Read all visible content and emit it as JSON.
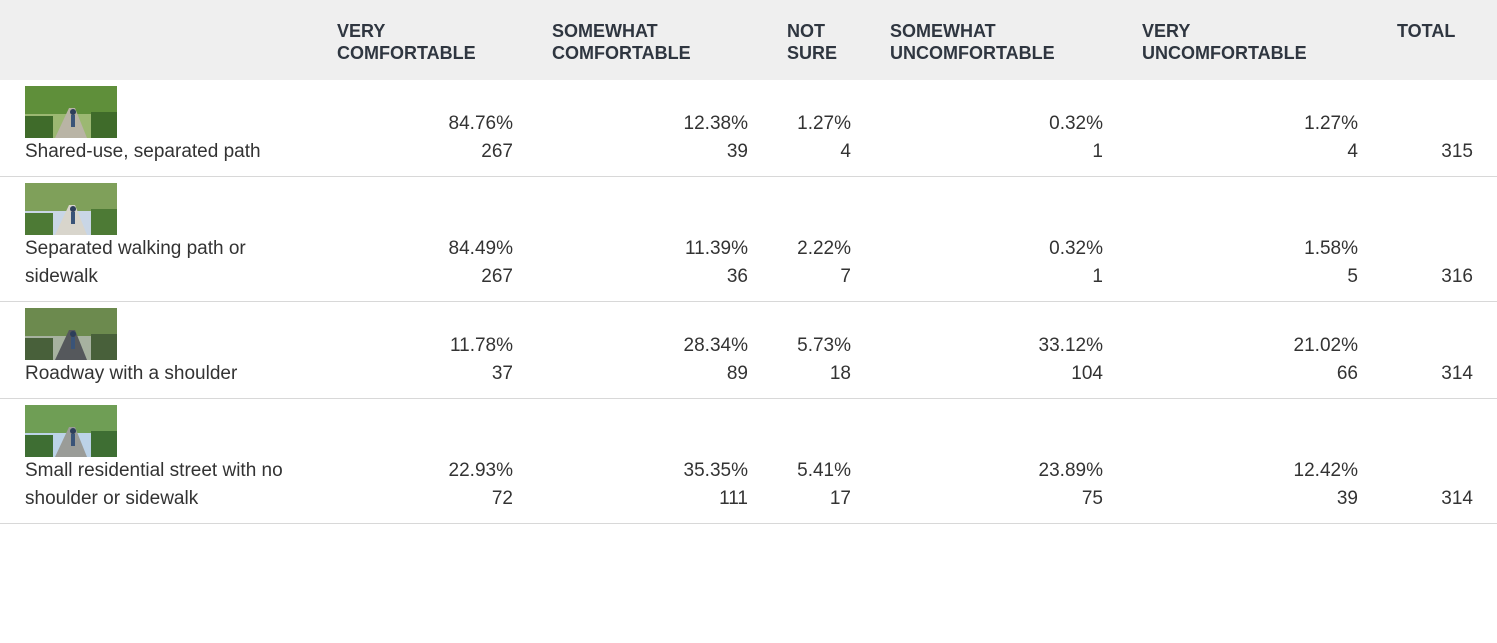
{
  "table": {
    "columns": [
      "VERY COMFORTABLE",
      "SOMEWHAT COMFORTABLE",
      "NOT SURE",
      "SOMEWHAT UNCOMFORTABLE",
      "VERY UNCOMFORTABLE",
      "TOTAL"
    ],
    "rows": [
      {
        "label": "Shared-use, separated path",
        "cells": [
          [
            "84.76%",
            "267"
          ],
          [
            "12.38%",
            "39"
          ],
          [
            "1.27%",
            "4"
          ],
          [
            "0.32%",
            "1"
          ],
          [
            "1.27%",
            "4"
          ]
        ],
        "total": "315"
      },
      {
        "label": "Separated walking path or sidewalk",
        "cells": [
          [
            "84.49%",
            "267"
          ],
          [
            "11.39%",
            "36"
          ],
          [
            "2.22%",
            "7"
          ],
          [
            "0.32%",
            "1"
          ],
          [
            "1.58%",
            "5"
          ]
        ],
        "total": "316"
      },
      {
        "label": "Roadway with a shoulder",
        "cells": [
          [
            "11.78%",
            "37"
          ],
          [
            "28.34%",
            "89"
          ],
          [
            "5.73%",
            "18"
          ],
          [
            "33.12%",
            "104"
          ],
          [
            "21.02%",
            "66"
          ]
        ],
        "total": "314"
      },
      {
        "label": "Small residential street with no shoulder or sidewalk",
        "cells": [
          [
            "22.93%",
            "72"
          ],
          [
            "35.35%",
            "111"
          ],
          [
            "5.41%",
            "17"
          ],
          [
            "23.89%",
            "75"
          ],
          [
            "12.42%",
            "39"
          ]
        ],
        "total": "314"
      }
    ]
  }
}
